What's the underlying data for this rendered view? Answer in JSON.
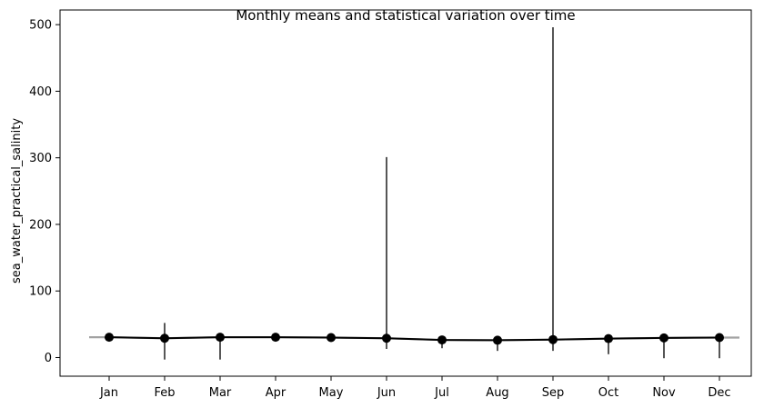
{
  "chart_data": {
    "type": "line",
    "title": "Monthly means and statistical variation over time",
    "xlabel": "",
    "ylabel": "sea_water_practical_salinity",
    "categories": [
      "Jan",
      "Feb",
      "Mar",
      "Apr",
      "May",
      "Jun",
      "Jul",
      "Aug",
      "Sep",
      "Oct",
      "Nov",
      "Dec"
    ],
    "ylim": [
      -28,
      522
    ],
    "yticks": [
      0,
      100,
      200,
      300,
      400,
      500
    ],
    "grid": false,
    "legend": "none",
    "series": [
      {
        "values": [
          30.5,
          29.0,
          30.5,
          30.5,
          30.0,
          29.0,
          26.5,
          26.0,
          27.0,
          28.5,
          29.5,
          30.0
        ],
        "ranges": [
          [
            28.5,
            32.5
          ],
          [
            -3,
            52
          ],
          [
            -3,
            33
          ],
          [
            28,
            33
          ],
          [
            28.5,
            32
          ],
          [
            13,
            301
          ],
          [
            14,
            31
          ],
          [
            10,
            30
          ],
          [
            10,
            496
          ],
          [
            5,
            32
          ],
          [
            -1,
            33
          ],
          [
            -1,
            33
          ]
        ]
      }
    ],
    "colors": {
      "mean_line": "#000000",
      "range_bar": "#444444",
      "marker": "#000000"
    }
  }
}
